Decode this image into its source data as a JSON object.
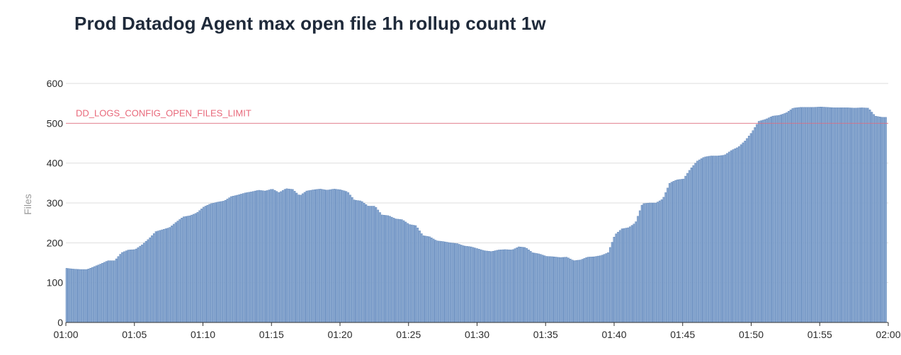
{
  "chart_data": {
    "type": "bar",
    "title": "Prod Datadog Agent max open file 1h rollup count 1w",
    "xlabel": "",
    "ylabel": "Files",
    "ylim": [
      0,
      600
    ],
    "yticks": [
      0,
      100,
      200,
      300,
      400,
      500,
      600
    ],
    "xticks": [
      "01:00",
      "01:05",
      "01:10",
      "01:15",
      "01:20",
      "01:25",
      "01:30",
      "01:35",
      "01:40",
      "01:45",
      "01:50",
      "01:55",
      "02:00"
    ],
    "x_range_minutes": [
      0,
      60
    ],
    "grid": true,
    "bar_color": "#8aa9d1",
    "bar_edge_color": "#5f86ba",
    "threshold": {
      "label": "DD_LOGS_CONFIG_OPEN_FILES_LIMIT",
      "value": 500,
      "color": "#e8687a"
    },
    "series": [
      {
        "minutes": [
          0,
          0.5,
          1,
          1.5,
          2,
          2.5,
          3,
          3.5,
          4,
          4.5,
          5,
          5.5,
          6,
          6.5,
          7,
          7.5,
          8,
          8.5,
          9,
          9.5,
          10,
          10.5,
          11,
          11.5,
          12,
          12.5,
          13,
          13.5,
          14,
          14.5,
          15,
          15.5,
          16,
          16.5,
          17,
          17.5,
          18,
          18.5,
          19,
          19.5,
          20,
          20.5,
          21,
          21.5,
          22,
          22.5,
          23,
          23.5,
          24,
          24.5,
          25,
          25.5,
          26,
          26.5,
          27,
          27.5,
          28,
          28.5,
          29,
          29.5,
          30,
          30.5,
          31,
          31.5,
          32,
          32.5,
          33,
          33.5,
          34,
          34.5,
          35,
          35.5,
          36,
          36.5,
          37,
          37.5,
          38,
          38.5,
          39,
          39.5,
          40,
          40.5,
          41,
          41.5,
          42,
          42.5,
          43,
          43.5,
          44,
          44.5,
          45,
          45.5,
          46,
          46.5,
          47,
          47.5,
          48,
          48.5,
          49,
          49.5,
          50,
          50.5,
          51,
          51.5,
          52,
          52.5,
          53,
          53.5,
          54,
          54.5,
          55,
          55.5,
          56,
          56.5,
          57,
          57.5,
          58,
          58.5,
          59,
          59.5,
          60
        ],
        "values": [
          136,
          134,
          133,
          133,
          140,
          147,
          155,
          155,
          175,
          182,
          183,
          195,
          210,
          228,
          233,
          238,
          252,
          265,
          268,
          275,
          290,
          298,
          302,
          305,
          316,
          320,
          325,
          328,
          332,
          330,
          335,
          326,
          336,
          334,
          318,
          330,
          333,
          335,
          332,
          335,
          333,
          328,
          307,
          305,
          292,
          292,
          270,
          268,
          260,
          258,
          246,
          243,
          218,
          215,
          205,
          203,
          200,
          198,
          192,
          190,
          185,
          180,
          178,
          182,
          183,
          182,
          190,
          188,
          175,
          172,
          166,
          165,
          163,
          164,
          155,
          157,
          164,
          165,
          168,
          175,
          220,
          235,
          238,
          250,
          298,
          300,
          300,
          310,
          350,
          358,
          360,
          385,
          405,
          415,
          418,
          418,
          420,
          432,
          440,
          456,
          478,
          505,
          510,
          518,
          520,
          526,
          538,
          540,
          540,
          540,
          541,
          540,
          539,
          539,
          539,
          538,
          539,
          538,
          518,
          515,
          515
        ]
      }
    ]
  }
}
